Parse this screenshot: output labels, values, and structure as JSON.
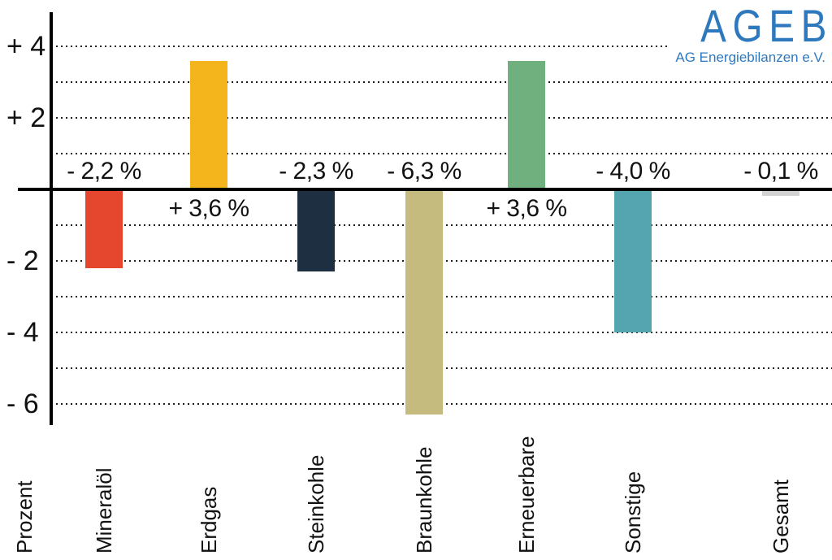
{
  "logo": {
    "title": "AGEB",
    "subtitle": "AG Energiebilanzen e.V.",
    "color": "#2e79be"
  },
  "chart_data": {
    "type": "bar",
    "title": "",
    "xlabel": "",
    "ylabel": "Prozent",
    "ylim": [
      -6.8,
      4.6
    ],
    "grid": "horizontal dotted lines at every 1 unit, solid black zero baseline",
    "legend": "none",
    "categories": [
      "Mineralöl",
      "Erdgas",
      "Steinkohle",
      "Braunkohle",
      "Erneuerbare",
      "Sonstige",
      "Gesamt"
    ],
    "values": [
      -2.2,
      3.6,
      -2.3,
      -6.3,
      3.6,
      -4.0,
      -0.1
    ],
    "value_labels": [
      "- 2,2 %",
      "+ 3,6 %",
      "- 2,3 %",
      "- 6,3 %",
      "+ 3,6 %",
      "- 4,0 %",
      "- 0,1 %"
    ],
    "colors": [
      "#e5472e",
      "#f3b41c",
      "#1e2f42",
      "#c5bb7e",
      "#6fb07e",
      "#55a5b1",
      "#d2d2d2"
    ],
    "gridlines": [
      4,
      3,
      2,
      1,
      -1,
      -2,
      -3,
      -4,
      -5,
      -6
    ],
    "y_ticks": [
      {
        "value": 4,
        "label": "+ 4"
      },
      {
        "value": 2,
        "label": "+ 2"
      },
      {
        "value": -2,
        "label": "- 2"
      },
      {
        "value": -4,
        "label": "- 4"
      },
      {
        "value": -6,
        "label": "- 6"
      }
    ]
  }
}
